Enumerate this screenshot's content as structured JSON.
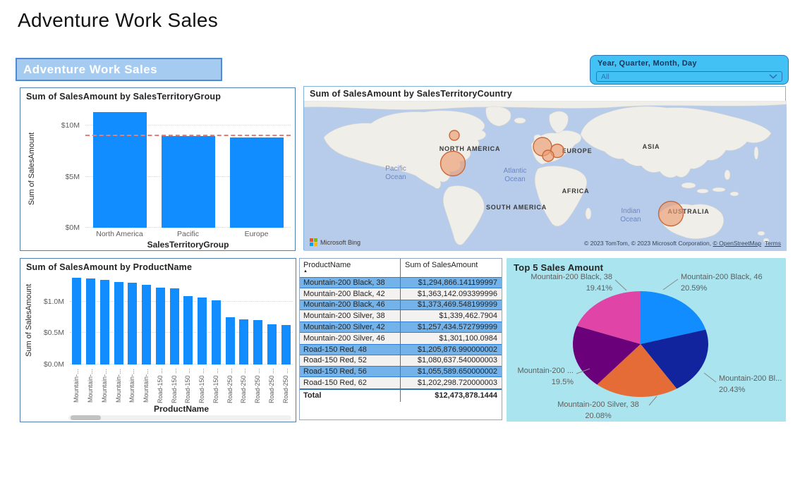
{
  "page_title": "Adventure Work Sales",
  "banner": {
    "label": "Adventure Work Sales"
  },
  "slicer": {
    "label": "Year, Quarter, Month, Day",
    "value": "All"
  },
  "chart_data": [
    {
      "id": "territory_bar",
      "type": "bar",
      "title": "Sum of SalesAmount by SalesTerritoryGroup",
      "categories": [
        "North America",
        "Pacific",
        "Europe"
      ],
      "values": [
        11.3,
        8.95,
        8.85
      ],
      "unit": "millions USD",
      "xlabel": "SalesTerritoryGroup",
      "ylabel": "Sum of SalesAmount",
      "ylim": [
        0,
        11.6
      ],
      "yticks": [
        {
          "v": 0,
          "label": "$0M"
        },
        {
          "v": 5,
          "label": "$5M"
        },
        {
          "v": 10,
          "label": "$10M"
        }
      ],
      "ref_line": {
        "value": 8.95,
        "color": "#E97C75",
        "style": "dashed"
      },
      "bar_color": "#118DFF",
      "grid": true
    },
    {
      "id": "country_map",
      "type": "map-bubble",
      "title": "Sum of SalesAmount by SalesTerritoryCountry",
      "bubble_color": "#ED9C72",
      "bubble_stroke": "#C9693A",
      "bubbles": [
        {
          "name": "Canada",
          "x": 213,
          "y": 49,
          "r": 7
        },
        {
          "name": "United States",
          "x": 211,
          "y": 89,
          "r": 17.5
        },
        {
          "name": "United Kingdom",
          "x": 338,
          "y": 65,
          "r": 13
        },
        {
          "name": "Germany",
          "x": 359,
          "y": 71,
          "r": 9.5
        },
        {
          "name": "France",
          "x": 346,
          "y": 78,
          "r": 8
        },
        {
          "name": "Australia",
          "x": 520,
          "y": 160,
          "r": 17.5
        }
      ],
      "labels": [
        {
          "kind": "land",
          "lines": [
            "NORTH AMERICA"
          ],
          "x": 235,
          "y": 71
        },
        {
          "kind": "land",
          "lines": [
            "EUROPE"
          ],
          "x": 387,
          "y": 74
        },
        {
          "kind": "land",
          "lines": [
            "ASIA"
          ],
          "x": 492,
          "y": 68
        },
        {
          "kind": "land",
          "lines": [
            "AFRICA"
          ],
          "x": 385,
          "y": 131
        },
        {
          "kind": "land",
          "lines": [
            "SOUTH AMERICA"
          ],
          "x": 301,
          "y": 154
        },
        {
          "kind": "land",
          "lines": [
            "AUSTRALIA"
          ],
          "x": 545,
          "y": 160
        },
        {
          "kind": "ocean",
          "lines": [
            "Pacific",
            "Ocean"
          ],
          "x": 130,
          "y": 99
        },
        {
          "kind": "ocean",
          "lines": [
            "Atlantic",
            "Ocean"
          ],
          "x": 299,
          "y": 102
        },
        {
          "kind": "ocean",
          "lines": [
            "Indian",
            "Ocean"
          ],
          "x": 463,
          "y": 159
        }
      ],
      "logo_label": "Microsoft Bing",
      "attribution_prefix": "© 2023 TomTom, © 2023 Microsoft Corporation, ",
      "link_osm": "© OpenStreetMap",
      "link_terms": "Terms"
    },
    {
      "id": "product_bar",
      "type": "bar",
      "title": "Sum of SalesAmount by ProductName",
      "categories": [
        "Mountain-...",
        "Mountain-...",
        "Mountain-...",
        "Mountain-...",
        "Mountain-...",
        "Mountain-...",
        "Road-150 ...",
        "Road-150 ...",
        "Road-150 ...",
        "Road-150 ...",
        "Road-150 ...",
        "Road-250 ...",
        "Road-250 ...",
        "Road-250 ...",
        "Road-250 ...",
        "Road-250 ..."
      ],
      "values": [
        1.375,
        1.365,
        1.345,
        1.305,
        1.295,
        1.265,
        1.215,
        1.205,
        1.085,
        1.06,
        1.015,
        0.745,
        0.715,
        0.7,
        0.64,
        0.625
      ],
      "unit": "millions USD",
      "xlabel": "ProductName",
      "ylabel": "Sum of SalesAmount",
      "ylim": [
        0,
        1.41
      ],
      "yticks": [
        {
          "v": 0,
          "label": "$0.0M"
        },
        {
          "v": 0.5,
          "label": "$0.5M"
        },
        {
          "v": 1.0,
          "label": "$1.0M"
        }
      ],
      "bar_color": "#118DFF",
      "grid": true,
      "has_hscrollbar": true
    },
    {
      "id": "product_table",
      "type": "table",
      "columns": [
        "ProductName",
        "Sum of SalesAmount"
      ],
      "sort": {
        "column": "ProductName",
        "direction": "ascending"
      },
      "rows": [
        {
          "product": "Mountain-200 Black, 38",
          "amount": "$1,294,866.141199997",
          "highlighted": true
        },
        {
          "product": "Mountain-200 Black, 42",
          "amount": "$1,363,142.093399996",
          "highlighted": false
        },
        {
          "product": "Mountain-200 Black, 46",
          "amount": "$1,373,469.548199999",
          "highlighted": true
        },
        {
          "product": "Mountain-200 Silver, 38",
          "amount": "$1,339,462.7904",
          "highlighted": false
        },
        {
          "product": "Mountain-200 Silver, 42",
          "amount": "$1,257,434.572799999",
          "highlighted": true
        },
        {
          "product": "Mountain-200 Silver, 46",
          "amount": "$1,301,100.0984",
          "highlighted": false
        },
        {
          "product": "Road-150 Red, 48",
          "amount": "$1,205,876.990000002",
          "highlighted": true
        },
        {
          "product": "Road-150 Red, 52",
          "amount": "$1,080,637.540000003",
          "highlighted": false
        },
        {
          "product": "Road-150 Red, 56",
          "amount": "$1,055,589.650000002",
          "highlighted": true
        },
        {
          "product": "Road-150 Red, 62",
          "amount": "$1,202,298.720000003",
          "highlighted": false
        }
      ],
      "total": {
        "label": "Total",
        "value": "$12,473,878.1444"
      }
    },
    {
      "id": "top5_pie",
      "type": "pie",
      "title": "Top 5 Sales Amount",
      "background": "#A9E4EF",
      "slices": [
        {
          "name": "Mountain-200 Black, 46",
          "label": "Mountain-200 Black, 46",
          "pct": 20.59,
          "pct_label": "20.59%",
          "color": "#118DFF",
          "label_pos": {
            "x": 247,
            "y": 30,
            "anchor": "start"
          },
          "line": [
            243,
            30,
            222,
            45
          ]
        },
        {
          "name": "Mountain-200 Black, 42",
          "label": "Mountain-200 Bl...",
          "pct": 20.43,
          "pct_label": "20.43%",
          "color": "#12239E",
          "label_pos": {
            "x": 301,
            "y": 174,
            "anchor": "start"
          },
          "line": [
            297,
            176,
            280,
            163
          ]
        },
        {
          "name": "Mountain-200 Silver, 38",
          "label": "Mountain-200 Silver, 38",
          "pct": 20.08,
          "pct_label": "20.08%",
          "color": "#E66C37",
          "label_pos": {
            "x": 130,
            "y": 211,
            "anchor": "middle"
          },
          "line": [
            202,
            209,
            213,
            196
          ]
        },
        {
          "name": "Mountain-200 Silver, 46",
          "label": "Mountain-200 ...",
          "pct": 19.5,
          "pct_label": "19.5%",
          "color": "#6B007B",
          "label_pos": {
            "x": 95,
            "y": 163,
            "anchor": "end"
          },
          "line": [
            99,
            164,
            118,
            157
          ]
        },
        {
          "name": "Mountain-200 Black, 38",
          "label": "Mountain-200 Black, 38",
          "pct": 19.41,
          "pct_label": "19.41%",
          "color": "#E044A7",
          "label_pos": {
            "x": 150,
            "y": 30,
            "anchor": "end"
          },
          "line": [
            154,
            31,
            170,
            46
          ]
        }
      ]
    }
  ]
}
